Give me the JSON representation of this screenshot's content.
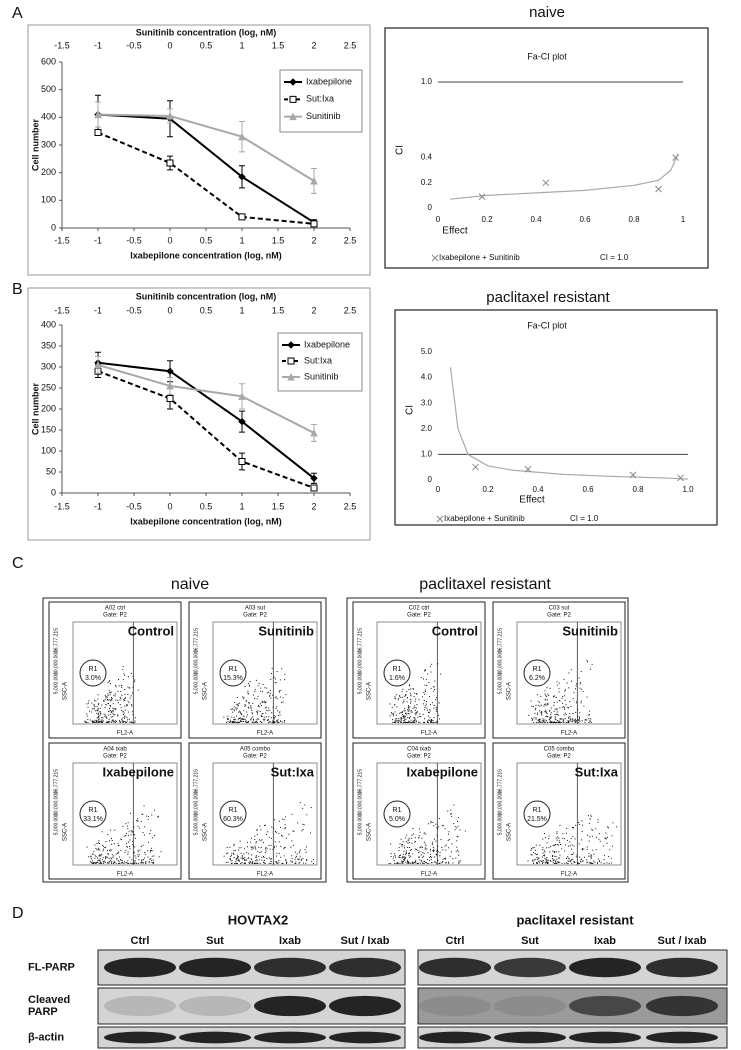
{
  "panel_labels": [
    "A",
    "B",
    "C",
    "D"
  ],
  "chart_data": [
    {
      "type": "line",
      "x2_title": "Sunitinib concentration (log, nM)",
      "x_title": "Ixabepilone concentration (log, nM)",
      "y_title": "Cell number",
      "xlim": [
        -1.5,
        2.5
      ],
      "xticks": [
        -1.5,
        -1,
        -0.5,
        0,
        0.5,
        1,
        1.5,
        2,
        2.5
      ],
      "x2ticks": [
        -1.5,
        -1,
        -0.5,
        0,
        0.5,
        1,
        1.5,
        2,
        2.5
      ],
      "ylim": [
        0,
        600
      ],
      "yticks": [
        0,
        100,
        200,
        300,
        400,
        500,
        600
      ],
      "x": [
        -1,
        0,
        1,
        2
      ],
      "series": [
        {
          "name": "Ixabepilone",
          "color": "#000000",
          "dash": false,
          "marker": "diamond",
          "values": [
            410,
            395,
            185,
            20
          ],
          "errors": [
            70,
            65,
            40,
            10
          ]
        },
        {
          "name": "Sut:Ixa",
          "color": "#000000",
          "dash": true,
          "marker": "square",
          "values": [
            345,
            235,
            40,
            15
          ],
          "errors": [
            10,
            25,
            5,
            5
          ]
        },
        {
          "name": "Sunitinib",
          "color": "#a8a8a8",
          "dash": false,
          "marker": "triangle",
          "values": [
            410,
            405,
            330,
            170
          ],
          "errors": [
            45,
            25,
            55,
            45
          ]
        }
      ]
    },
    {
      "type": "line",
      "x2_title": "Sunitinib concentration (log, nM)",
      "x_title": "Ixabepilone concentration (log, nM)",
      "y_title": "Cell number",
      "xlim": [
        -1.5,
        2.5
      ],
      "xticks": [
        -1.5,
        -1,
        -0.5,
        0,
        0.5,
        1,
        1.5,
        2,
        2.5
      ],
      "x2ticks": [
        -1.5,
        -1,
        -0.5,
        0,
        0.5,
        1,
        1.5,
        2,
        2.5
      ],
      "ylim": [
        0,
        400
      ],
      "yticks": [
        0,
        50,
        100,
        150,
        200,
        250,
        300,
        350,
        400
      ],
      "x": [
        -1,
        0,
        1,
        2
      ],
      "series": [
        {
          "name": "Ixabepilone",
          "color": "#000000",
          "dash": false,
          "marker": "diamond",
          "values": [
            310,
            290,
            170,
            35
          ],
          "errors": [
            25,
            25,
            25,
            12
          ]
        },
        {
          "name": "Sut:Ixa",
          "color": "#000000",
          "dash": true,
          "marker": "square",
          "values": [
            290,
            225,
            75,
            12
          ],
          "errors": [
            15,
            25,
            20,
            5
          ]
        },
        {
          "name": "Sunitinib",
          "color": "#a8a8a8",
          "dash": false,
          "marker": "triangle",
          "values": [
            305,
            255,
            230,
            143
          ],
          "errors": [
            20,
            20,
            30,
            20
          ]
        }
      ]
    },
    {
      "type": "fa-ci",
      "panel_title": "naive",
      "title": "Fa-CI plot",
      "x_title": "Effect",
      "y_title": "CI",
      "xlim": [
        0,
        1
      ],
      "xticks": [
        0,
        0.2,
        0.4,
        0.6,
        0.8,
        1
      ],
      "ylim": [
        0,
        1
      ],
      "yticks": [
        0,
        0.2,
        0.4,
        {
          "value": 1,
          "label": "1.0"
        }
      ],
      "series": [
        {
          "name": "Ixabepilone + Sunitinib",
          "color": "#888888",
          "x": [
            0.18,
            0.44,
            0.9,
            0.97
          ],
          "values": [
            0.09,
            0.2,
            0.15,
            0.4
          ]
        }
      ],
      "curve": {
        "color": "#aaaaaa",
        "x": [
          0.05,
          0.2,
          0.4,
          0.6,
          0.8,
          0.9,
          0.95,
          0.98
        ],
        "values": [
          0.07,
          0.1,
          0.12,
          0.14,
          0.18,
          0.22,
          0.3,
          0.43
        ]
      },
      "reference": {
        "name": "CI = 1.0",
        "value": 1
      }
    },
    {
      "type": "fa-ci",
      "panel_title": "paclitaxel resistant",
      "title": "Fa-CI plot",
      "x_title": "Effect",
      "y_title": "CI",
      "xlim": [
        0,
        1
      ],
      "xticks": [
        0,
        0.2,
        0.4,
        0.6,
        0.8,
        {
          "value": 1,
          "label": "1.0"
        }
      ],
      "ylim": [
        0,
        5
      ],
      "yticks": [
        0,
        {
          "value": 1,
          "label": "1.0"
        },
        {
          "value": 2,
          "label": "2.0"
        },
        {
          "value": 3,
          "label": "3.0"
        },
        {
          "value": 4,
          "label": "4.0"
        },
        {
          "value": 5,
          "label": "5.0"
        }
      ],
      "series": [
        {
          "name": "Ixabepilone + Sunitinib",
          "color": "#888888",
          "x": [
            0.15,
            0.36,
            0.78,
            0.97
          ],
          "values": [
            0.5,
            0.42,
            0.2,
            0.08
          ]
        }
      ],
      "curve": {
        "color": "#aaaaaa",
        "x": [
          0.05,
          0.08,
          0.12,
          0.2,
          0.3,
          0.5,
          0.7,
          0.9,
          1.0
        ],
        "values": [
          4.4,
          2.0,
          1.0,
          0.55,
          0.38,
          0.22,
          0.14,
          0.08,
          0.04
        ]
      },
      "reference": {
        "name": "CI = 1.0",
        "value": 1
      }
    }
  ],
  "flow": {
    "y_axis": "SSC-A",
    "x_axis": "FL2-A",
    "y_ticks": [
      "16,777,215",
      "10,000,000",
      "5,000,000"
    ],
    "groups": [
      {
        "title": "naive",
        "plots": [
          {
            "id": "A02 ctrl",
            "gate": "Gate: P2",
            "label": "Control",
            "region": "R1",
            "percent": "3.0%"
          },
          {
            "id": "A03 sut",
            "gate": "Gate: P2",
            "label": "Sunitinib",
            "region": "R1",
            "percent": "15.3%"
          },
          {
            "id": "A04 ixab",
            "gate": "Gate: P2",
            "label": "Ixabepilone",
            "region": "R1",
            "percent": "33.1%"
          },
          {
            "id": "A05 combo",
            "gate": "Gate: P2",
            "label": "Sut:Ixa",
            "region": "R1",
            "percent": "60.3%"
          }
        ]
      },
      {
        "title": "paclitaxel resistant",
        "plots": [
          {
            "id": "C02 ctrl",
            "gate": "Gate: P2",
            "label": "Control",
            "region": "R1",
            "percent": "1.6%"
          },
          {
            "id": "C03 sut",
            "gate": "Gate: P2",
            "label": "Sunitinib",
            "region": "R1",
            "percent": "6.2%"
          },
          {
            "id": "C04 ixab",
            "gate": "Gate: P2",
            "label": "Ixabepilone",
            "region": "R1",
            "percent": "5.0%"
          },
          {
            "id": "C05 combo",
            "gate": "Gate: P2",
            "label": "Sut:Ixa",
            "region": "R1",
            "percent": "21.5%"
          }
        ]
      }
    ]
  },
  "western": {
    "groups": [
      {
        "title": "HOVTAX2"
      },
      {
        "title": "paclitaxel resistant"
      }
    ],
    "lanes": [
      "Ctrl",
      "Sut",
      "Ixab",
      "Sut / Ixab"
    ],
    "rows": [
      {
        "lines": [
          "FL-PARP"
        ]
      },
      {
        "lines": [
          "Cleaved",
          "PARP"
        ]
      },
      {
        "lines": [
          "β-actin"
        ]
      }
    ]
  }
}
